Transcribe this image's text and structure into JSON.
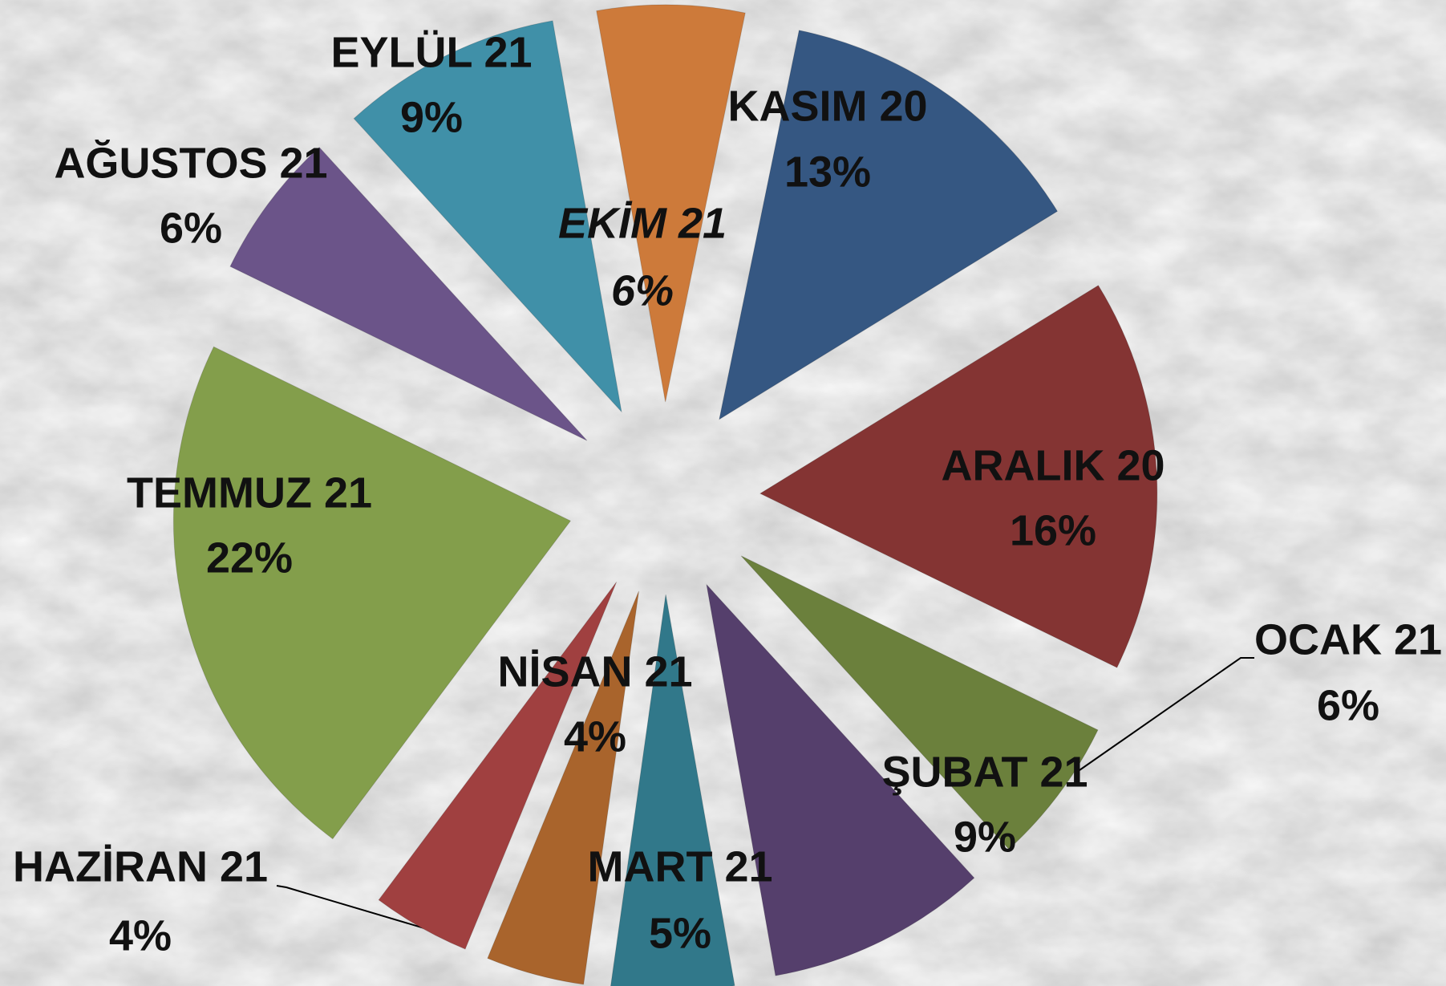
{
  "chart_data": {
    "type": "pie",
    "categories": [
      "EKİM 21",
      "KASIM 20",
      "ARALIK 20",
      "OCAK 21",
      "ŞUBAT 21",
      "MART 21",
      "NİSAN 21",
      "HAZİRAN 21",
      "TEMMUZ 21",
      "AĞUSTOS 21",
      "EYLÜL 21"
    ],
    "values": [
      6,
      13,
      16,
      6,
      9,
      5,
      4,
      4,
      22,
      6,
      9
    ],
    "value_labels": [
      "6%",
      "13%",
      "16%",
      "6%",
      "9%",
      "5%",
      "4%",
      "4%",
      "22%",
      "6%",
      "9%"
    ],
    "colors": [
      "#cd7a3a",
      "#355782",
      "#843433",
      "#6b803c",
      "#553f6c",
      "#31788a",
      "#a9642c",
      "#a04040",
      "#839e4b",
      "#6b5489",
      "#4090a8"
    ],
    "highlight": "EKİM 21",
    "highlight_color": "#ff0000"
  }
}
